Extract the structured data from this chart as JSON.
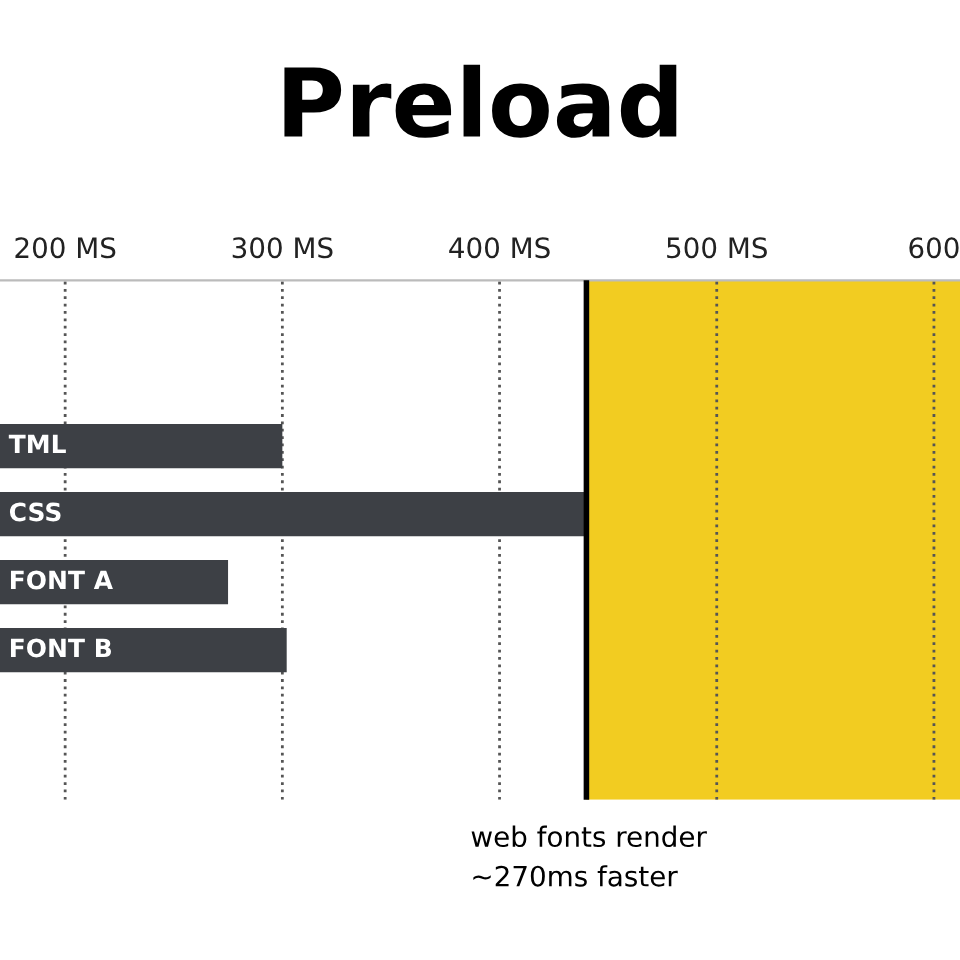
{
  "chart_data": {
    "type": "bar",
    "orientation": "horizontal",
    "title": "Preload",
    "categories": [
      "TML",
      "CSS",
      "FONT A",
      "FONT B"
    ],
    "values": [
      300,
      440,
      275,
      302
    ],
    "color": "#3d4045",
    "xlim": [
      170,
      612
    ],
    "xticks": [
      {
        "value": 200,
        "label": "200 MS"
      },
      {
        "value": 300,
        "label": "300 MS"
      },
      {
        "value": 400,
        "label": "400 MS"
      },
      {
        "value": 500,
        "label": "500 MS"
      },
      {
        "value": 600,
        "label": "600"
      }
    ],
    "grid": "x",
    "bands": [
      {
        "axis": "x",
        "from": 440,
        "to": 612,
        "color": "#f2cc21"
      }
    ],
    "ref_lines": [
      {
        "axis": "x",
        "value": 440,
        "color": "#000000",
        "line_style": "solid"
      }
    ],
    "annotations": [
      "web fonts render\n~270ms faster"
    ]
  }
}
